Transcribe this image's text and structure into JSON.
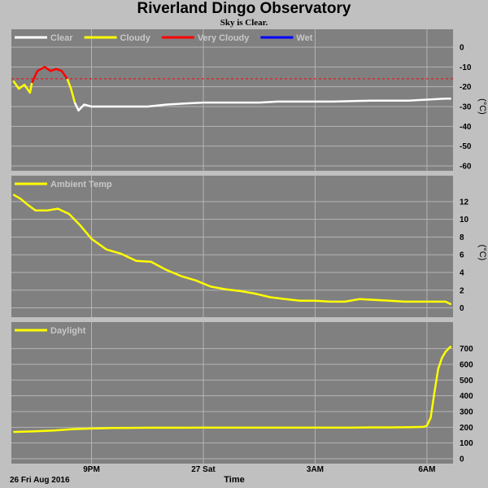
{
  "header": {
    "title": "Riverland Dingo Observatory",
    "subtitle": "Sky is Clear."
  },
  "colors": {
    "panel_bg": "#808080",
    "page_bg": "#c0c0c0",
    "grid": "#b4b4b4",
    "clear": "#ffffff",
    "cloudy": "#ffff00",
    "very_cloudy": "#ff0000",
    "wet": "#0000ff",
    "threshold": "#ff0000"
  },
  "x_axis": {
    "title": "Time",
    "start_label": "26 Fri Aug 2016",
    "ticks": [
      {
        "label": "9PM",
        "hour": 2.0
      },
      {
        "label": "27 Sat",
        "hour": 5.0
      },
      {
        "label": "3AM",
        "hour": 8.0
      },
      {
        "label": "6AM",
        "hour": 11.0
      }
    ]
  },
  "chart_data": [
    {
      "type": "line",
      "name": "sky",
      "unit": "(°C)",
      "hour_range": [
        -0.15,
        11.7
      ],
      "ylim": [
        -60,
        0
      ],
      "yticks": [
        0,
        -10,
        -20,
        -30,
        -40,
        -50,
        -60
      ],
      "legend": [
        {
          "label": "Clear",
          "color": "#ffffff"
        },
        {
          "label": "Cloudy",
          "color": "#ffff00"
        },
        {
          "label": "Very Cloudy",
          "color": "#ff0000"
        },
        {
          "label": "Wet",
          "color": "#0000ff"
        }
      ],
      "threshold_y": -16,
      "segments": [
        {
          "state": "Cloudy",
          "color": "#ffff00",
          "x": [
            -0.1,
            0.05,
            0.2,
            0.35,
            0.4
          ],
          "y": [
            -17,
            -21,
            -19,
            -23,
            -18
          ]
        },
        {
          "state": "Very Cloudy",
          "color": "#ff0000",
          "x": [
            0.4,
            0.55,
            0.75,
            0.9,
            1.05,
            1.2,
            1.35
          ],
          "y": [
            -18,
            -12,
            -10,
            -12,
            -11,
            -12,
            -16
          ]
        },
        {
          "state": "Cloudy",
          "color": "#ffff00",
          "x": [
            1.35,
            1.45,
            1.55
          ],
          "y": [
            -16,
            -21,
            -28
          ]
        },
        {
          "state": "Clear",
          "color": "#ffffff",
          "x": [
            1.55,
            1.65,
            1.8,
            2.0,
            2.5,
            3.0,
            3.5,
            4.0,
            4.5,
            5.0,
            5.5,
            6.0,
            6.5,
            7.0,
            7.5,
            8.0,
            8.5,
            9.0,
            9.5,
            10.0,
            10.5,
            11.0,
            11.5,
            11.65
          ],
          "y": [
            -28,
            -32,
            -29,
            -30,
            -30,
            -30,
            -30,
            -29,
            -28.5,
            -28,
            -28,
            -28,
            -28,
            -27.5,
            -27.5,
            -27.5,
            -27.5,
            -27.2,
            -27,
            -27,
            -27,
            -26.5,
            -26,
            -26
          ]
        }
      ]
    },
    {
      "type": "line",
      "name": "ambient",
      "unit": "(°C)",
      "hour_range": [
        -0.15,
        11.7
      ],
      "ylim": [
        -0.5,
        13
      ],
      "yticks": [
        0,
        2,
        4,
        6,
        8,
        10,
        12
      ],
      "legend": [
        {
          "label": "Ambient Temp",
          "color": "#ffff00"
        }
      ],
      "series": [
        {
          "name": "Ambient Temp",
          "color": "#ffff00",
          "x": [
            -0.1,
            0.1,
            0.3,
            0.5,
            0.8,
            1.1,
            1.4,
            1.7,
            2.0,
            2.4,
            2.8,
            3.2,
            3.6,
            4.0,
            4.4,
            4.8,
            5.2,
            5.6,
            6.0,
            6.4,
            6.8,
            7.2,
            7.6,
            8.0,
            8.4,
            8.8,
            9.2,
            9.6,
            10.0,
            10.4,
            10.8,
            11.2,
            11.5,
            11.65
          ],
          "y": [
            12.8,
            12.3,
            11.6,
            11.0,
            11.0,
            11.2,
            10.6,
            9.3,
            7.8,
            6.6,
            6.1,
            5.3,
            5.2,
            4.3,
            3.6,
            3.1,
            2.4,
            2.1,
            1.9,
            1.6,
            1.2,
            1.0,
            0.8,
            0.8,
            0.7,
            0.7,
            1.0,
            0.9,
            0.8,
            0.7,
            0.7,
            0.7,
            0.7,
            0.4
          ]
        }
      ]
    },
    {
      "type": "line",
      "name": "daylight",
      "unit": "",
      "hour_range": [
        -0.15,
        11.7
      ],
      "ylim": [
        0,
        760
      ],
      "yticks": [
        0,
        100,
        200,
        300,
        400,
        500,
        600,
        700
      ],
      "legend": [
        {
          "label": "Daylight",
          "color": "#ffff00"
        }
      ],
      "series": [
        {
          "name": "Daylight",
          "color": "#ffff00",
          "x": [
            -0.1,
            0.5,
            1.0,
            1.5,
            2.0,
            2.5,
            3.0,
            3.5,
            4.0,
            4.5,
            5.0,
            5.5,
            6.0,
            6.5,
            7.0,
            7.5,
            8.0,
            8.5,
            9.0,
            9.5,
            10.0,
            10.5,
            10.9,
            11.0,
            11.1,
            11.2,
            11.3,
            11.4,
            11.5,
            11.6,
            11.65
          ],
          "y": [
            170,
            175,
            180,
            188,
            192,
            195,
            196,
            197,
            197,
            197,
            198,
            198,
            198,
            198,
            198,
            198,
            198,
            198,
            198,
            199,
            199,
            200,
            202,
            210,
            260,
            420,
            570,
            640,
            680,
            705,
            715
          ]
        }
      ]
    }
  ]
}
